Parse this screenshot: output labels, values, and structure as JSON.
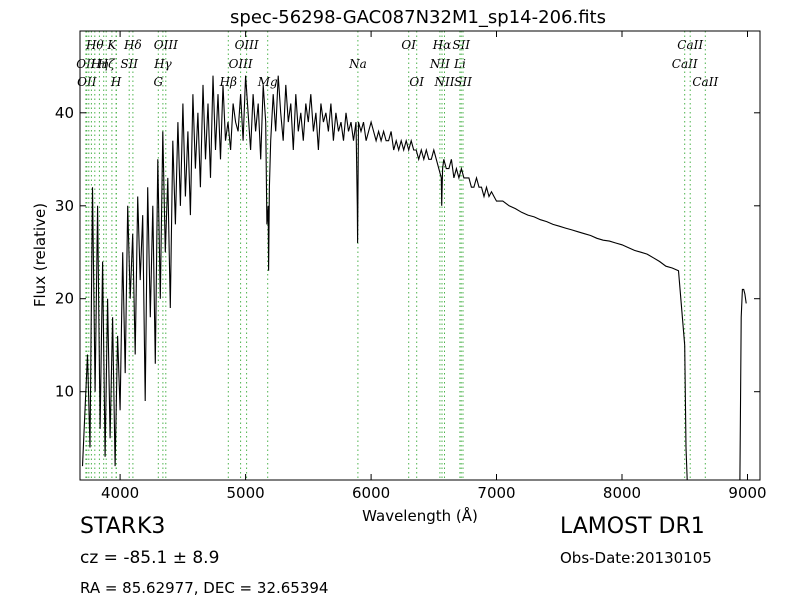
{
  "chart_data": {
    "type": "line",
    "title": "spec-56298-GAC087N32M1_sp14-206.fits",
    "xlabel": "Wavelength (Å)",
    "ylabel": "Flux (relative)",
    "xlim": [
      3680,
      9100
    ],
    "ylim": [
      0.5,
      48.8
    ],
    "xticks": [
      4000,
      5000,
      6000,
      7000,
      8000,
      9000
    ],
    "yticks": [
      10,
      20,
      30,
      40
    ],
    "grid": false,
    "series": [
      {
        "x": [
          3700,
          3720,
          3740,
          3760,
          3780,
          3800,
          3820,
          3840,
          3860,
          3880,
          3900,
          3920,
          3940,
          3960,
          3980,
          4000,
          4020,
          4040,
          4060,
          4080,
          4100,
          4120,
          4140,
          4160,
          4180,
          4200,
          4220,
          4240,
          4260,
          4280,
          4300,
          4320,
          4340,
          4360,
          4380,
          4400,
          4420,
          4440,
          4460,
          4480,
          4500,
          4520,
          4540,
          4560,
          4580,
          4600,
          4620,
          4640,
          4660,
          4680,
          4700,
          4720,
          4740,
          4760,
          4780,
          4800,
          4820,
          4840,
          4860,
          4880,
          4900,
          4920,
          4940,
          4960,
          4980,
          5000,
          5020,
          5040,
          5060,
          5080,
          5100,
          5120,
          5140,
          5160,
          5170,
          5180,
          5183,
          5190,
          5200,
          5220,
          5240,
          5260,
          5280,
          5300,
          5320,
          5340,
          5360,
          5380,
          5400,
          5420,
          5440,
          5460,
          5480,
          5500,
          5520,
          5540,
          5560,
          5580,
          5600,
          5620,
          5640,
          5660,
          5680,
          5700,
          5720,
          5740,
          5760,
          5780,
          5800,
          5820,
          5840,
          5860,
          5880,
          5890,
          5893,
          5896,
          5900,
          5920,
          5940,
          5960,
          5980,
          6000,
          6020,
          6040,
          6060,
          6080,
          6100,
          6120,
          6140,
          6160,
          6180,
          6200,
          6220,
          6240,
          6260,
          6280,
          6300,
          6320,
          6340,
          6360,
          6380,
          6400,
          6420,
          6440,
          6460,
          6480,
          6500,
          6520,
          6540,
          6560,
          6563,
          6570,
          6580,
          6600,
          6620,
          6640,
          6660,
          6680,
          6700,
          6720,
          6740,
          6760,
          6780,
          6800,
          6820,
          6840,
          6860,
          6880,
          6900,
          6920,
          6940,
          6960,
          6980,
          7000,
          7050,
          7100,
          7150,
          7200,
          7250,
          7300,
          7350,
          7400,
          7450,
          7500,
          7550,
          7600,
          7650,
          7700,
          7750,
          7800,
          7850,
          7900,
          7950,
          8000,
          8050,
          8100,
          8150,
          8200,
          8250,
          8300,
          8350,
          8400,
          8450,
          8500,
          8510,
          8520,
          8540,
          8560,
          8600,
          8700,
          8800,
          8900,
          8940,
          8950,
          8960,
          8970,
          8980,
          8990
        ],
        "y": [
          2,
          8,
          14,
          4,
          32,
          10,
          30,
          6,
          24,
          3,
          20,
          5,
          18,
          2,
          16,
          8,
          25,
          12,
          30,
          20,
          27,
          14,
          31,
          22,
          29,
          9,
          32,
          18,
          30,
          13,
          35,
          20,
          38,
          25,
          33,
          19,
          37,
          28,
          39,
          30,
          41,
          31,
          38,
          29,
          42,
          34,
          40,
          32,
          43,
          35,
          41,
          33,
          44,
          36,
          42,
          35,
          43,
          37,
          39,
          36,
          41,
          39,
          38,
          42,
          37,
          44,
          40,
          36,
          42,
          38,
          41,
          35,
          43,
          39,
          28,
          30,
          23,
          32,
          37,
          42,
          38,
          44,
          40,
          37,
          43,
          39,
          41,
          36,
          42,
          38,
          40,
          37,
          41,
          39,
          42,
          38,
          40,
          36,
          41,
          39,
          40,
          38,
          41,
          37,
          40,
          38,
          39,
          37,
          40,
          38,
          39,
          37,
          39,
          30,
          26,
          32,
          39,
          38,
          39,
          37,
          38,
          39,
          38,
          37,
          38,
          37,
          38,
          37,
          37,
          38,
          36,
          37,
          36,
          37,
          36,
          37,
          36,
          37,
          36,
          36,
          35,
          36,
          35,
          36,
          35,
          35,
          36,
          35,
          34,
          33,
          30,
          34,
          35,
          34,
          34,
          35,
          33,
          34,
          33,
          34,
          33,
          33,
          33,
          32,
          32,
          33,
          32,
          32,
          31,
          32,
          31,
          31.5,
          31,
          30.5,
          30.5,
          30,
          29.7,
          29.3,
          29,
          28.8,
          28.5,
          28.3,
          28,
          27.8,
          27.6,
          27.4,
          27.2,
          27,
          26.8,
          26.5,
          26.3,
          26.2,
          26,
          25.8,
          25.5,
          25.2,
          25,
          24.8,
          24.4,
          24,
          23.5,
          23.3,
          23,
          15,
          4,
          0.5,
          0.5,
          0.5,
          0.5,
          0.5,
          0.5,
          0.5,
          0.5,
          18,
          21,
          21,
          20.5,
          19.5
        ]
      }
    ],
    "lines": [
      {
        "x": 3727,
        "label": "OII",
        "row": 1
      },
      {
        "x": 3734,
        "label": "OII",
        "row": 2
      },
      {
        "x": 3750,
        "label": "",
        "row": 0
      },
      {
        "x": 3771,
        "label": "",
        "row": 0
      },
      {
        "x": 3798,
        "label": "Hθ",
        "row": 0
      },
      {
        "x": 3835,
        "label": "Hη",
        "row": 1
      },
      {
        "x": 3869,
        "label": "",
        "row": 0
      },
      {
        "x": 3889,
        "label": "Hζ",
        "row": 1
      },
      {
        "x": 3934,
        "label": "K",
        "row": 0
      },
      {
        "x": 3968,
        "label": "H",
        "row": 2
      },
      {
        "x": 3970,
        "label": "",
        "row": 0
      },
      {
        "x": 4072,
        "label": "SII",
        "row": 1
      },
      {
        "x": 4102,
        "label": "Hδ",
        "row": 0
      },
      {
        "x": 4304,
        "label": "G",
        "row": 2
      },
      {
        "x": 4341,
        "label": "Hγ",
        "row": 1
      },
      {
        "x": 4364,
        "label": "OIII",
        "row": 0
      },
      {
        "x": 4862,
        "label": "Hβ",
        "row": 2
      },
      {
        "x": 4960,
        "label": "OIII",
        "row": 1
      },
      {
        "x": 5008,
        "label": "OIII",
        "row": 0
      },
      {
        "x": 5176,
        "label": "Mg",
        "row": 2
      },
      {
        "x": 5895,
        "label": "Na",
        "row": 1
      },
      {
        "x": 6300,
        "label": "OI",
        "row": 0
      },
      {
        "x": 6364,
        "label": "OI",
        "row": 2
      },
      {
        "x": 6549,
        "label": "NII",
        "row": 1
      },
      {
        "x": 6565,
        "label": "Hα",
        "row": 0
      },
      {
        "x": 6585,
        "label": "NII",
        "row": 2
      },
      {
        "x": 6708,
        "label": "Li",
        "row": 1
      },
      {
        "x": 6718,
        "label": "SII",
        "row": 0
      },
      {
        "x": 6733,
        "label": "SII",
        "row": 2
      },
      {
        "x": 8500,
        "label": "CaII",
        "row": 1
      },
      {
        "x": 8544,
        "label": "CaII",
        "row": 0
      },
      {
        "x": 8664,
        "label": "CaII",
        "row": 2
      }
    ]
  },
  "annotations": {
    "class": "STAR",
    "subclass": "K3",
    "redshift": "cz = -85.1 ± 8.9",
    "coords": "RA = 85.62977, DEC = 32.65394",
    "survey": "LAMOST DR1",
    "obs_date": "Obs-Date:20130105"
  },
  "colors": {
    "spectrum": "#000000",
    "line_marker": "#4db34d",
    "axes": "#000000"
  }
}
